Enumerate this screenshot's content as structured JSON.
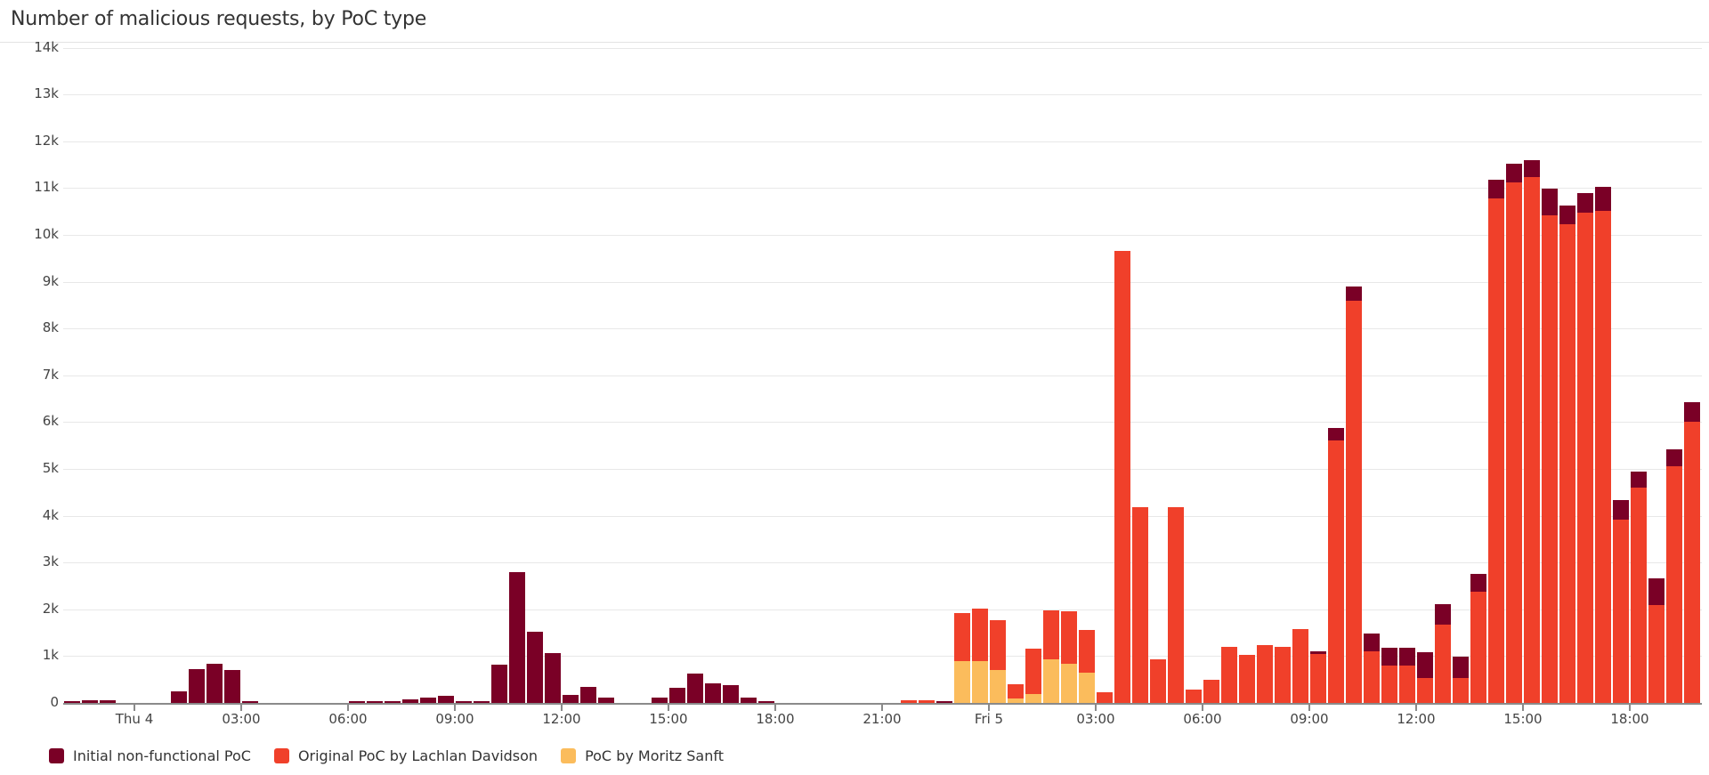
{
  "header": {
    "title": "Number of malicious requests, by PoC type"
  },
  "colors": {
    "initial": "#7a0026",
    "original": "#f0402a",
    "moritz": "#fbbc5c"
  },
  "legend": [
    {
      "label": "Initial non-functional PoC",
      "color": "#7a0026"
    },
    {
      "label": "Original PoC by Lachlan Davidson",
      "color": "#f0402a"
    },
    {
      "label": "PoC by Moritz Sanft",
      "color": "#fbbc5c"
    }
  ],
  "y_ticks": [
    "0",
    "1k",
    "2k",
    "3k",
    "4k",
    "5k",
    "6k",
    "7k",
    "8k",
    "9k",
    "10k",
    "11k",
    "12k",
    "13k",
    "14k"
  ],
  "x_ticks": [
    {
      "label": "Thu 4",
      "hour_offset": 2
    },
    {
      "label": "03:00",
      "hour_offset": 5
    },
    {
      "label": "06:00",
      "hour_offset": 8
    },
    {
      "label": "09:00",
      "hour_offset": 11
    },
    {
      "label": "12:00",
      "hour_offset": 14
    },
    {
      "label": "15:00",
      "hour_offset": 17
    },
    {
      "label": "18:00",
      "hour_offset": 20
    },
    {
      "label": "21:00",
      "hour_offset": 23
    },
    {
      "label": "Fri 5",
      "hour_offset": 26
    },
    {
      "label": "03:00",
      "hour_offset": 29
    },
    {
      "label": "06:00",
      "hour_offset": 32
    },
    {
      "label": "09:00",
      "hour_offset": 35
    },
    {
      "label": "12:00",
      "hour_offset": 38
    },
    {
      "label": "15:00",
      "hour_offset": 41
    },
    {
      "label": "18:00",
      "hour_offset": 44
    }
  ],
  "chart_data": {
    "type": "bar",
    "stacked": true,
    "title": "Number of malicious requests, by PoC type",
    "xlabel": "",
    "ylabel": "",
    "ylim": [
      0,
      14000
    ],
    "grid": true,
    "legend_position": "bottom-left",
    "bin": "30 minutes, starting Wed 22:00",
    "x_tick_labels": [
      "Thu 4",
      "03:00",
      "06:00",
      "09:00",
      "12:00",
      "15:00",
      "18:00",
      "21:00",
      "Fri 5",
      "03:00",
      "06:00",
      "09:00",
      "12:00",
      "15:00",
      "18:00"
    ],
    "y_tick_labels": [
      "0",
      "1k",
      "2k",
      "3k",
      "4k",
      "5k",
      "6k",
      "7k",
      "8k",
      "9k",
      "10k",
      "11k",
      "12k",
      "13k",
      "14k"
    ],
    "series": [
      {
        "name": "PoC by Moritz Sanft",
        "color": "#fbbc5c",
        "values": [
          0,
          0,
          0,
          0,
          0,
          0,
          0,
          0,
          0,
          0,
          0,
          0,
          0,
          0,
          0,
          0,
          0,
          0,
          0,
          0,
          0,
          0,
          0,
          0,
          0,
          0,
          0,
          0,
          0,
          0,
          0,
          0,
          0,
          0,
          0,
          0,
          0,
          0,
          0,
          0,
          0,
          0,
          0,
          0,
          0,
          0,
          0,
          0,
          0,
          0,
          900,
          900,
          710,
          100,
          190,
          930,
          830,
          640,
          0,
          0,
          0,
          0,
          0,
          0,
          0,
          0,
          0,
          0,
          0,
          0,
          0,
          0,
          0,
          0,
          0,
          0,
          0,
          0,
          0,
          0,
          0,
          0,
          0,
          0,
          0,
          0,
          0,
          0,
          0,
          0,
          0,
          0
        ]
      },
      {
        "name": "Original PoC by Lachlan Davidson",
        "color": "#f0402a",
        "values": [
          0,
          0,
          0,
          0,
          0,
          0,
          0,
          0,
          0,
          0,
          0,
          0,
          0,
          0,
          0,
          0,
          0,
          0,
          0,
          0,
          0,
          0,
          0,
          0,
          0,
          0,
          0,
          0,
          0,
          0,
          0,
          0,
          0,
          0,
          0,
          0,
          0,
          0,
          0,
          0,
          0,
          0,
          0,
          0,
          0,
          0,
          0,
          50,
          50,
          0,
          1020,
          1120,
          1060,
          300,
          970,
          1050,
          1120,
          920,
          220,
          9650,
          4180,
          930,
          4180,
          290,
          500,
          1200,
          1020,
          1230,
          1200,
          1570,
          1050,
          5610,
          8590,
          1110,
          790,
          790,
          540,
          1670,
          540,
          2370,
          10780,
          11120,
          11240,
          10420,
          10230,
          10470,
          10510,
          3920,
          4610,
          2090,
          5060,
          6000
        ]
      },
      {
        "name": "Initial non-functional PoC",
        "color": "#7a0026",
        "values": [
          30,
          50,
          50,
          0,
          0,
          0,
          240,
          730,
          830,
          700,
          20,
          0,
          0,
          0,
          0,
          0,
          20,
          20,
          20,
          80,
          110,
          150,
          20,
          20,
          820,
          2800,
          1520,
          1060,
          170,
          350,
          110,
          0,
          0,
          110,
          320,
          630,
          420,
          380,
          110,
          20,
          0,
          0,
          0,
          0,
          0,
          0,
          0,
          0,
          0,
          20,
          0,
          0,
          0,
          0,
          0,
          0,
          0,
          0,
          0,
          0,
          0,
          0,
          0,
          0,
          0,
          0,
          0,
          0,
          0,
          0,
          50,
          270,
          300,
          370,
          380,
          380,
          540,
          440,
          440,
          380,
          390,
          410,
          360,
          560,
          390,
          430,
          510,
          410,
          340,
          570,
          350,
          420
        ]
      }
    ]
  }
}
